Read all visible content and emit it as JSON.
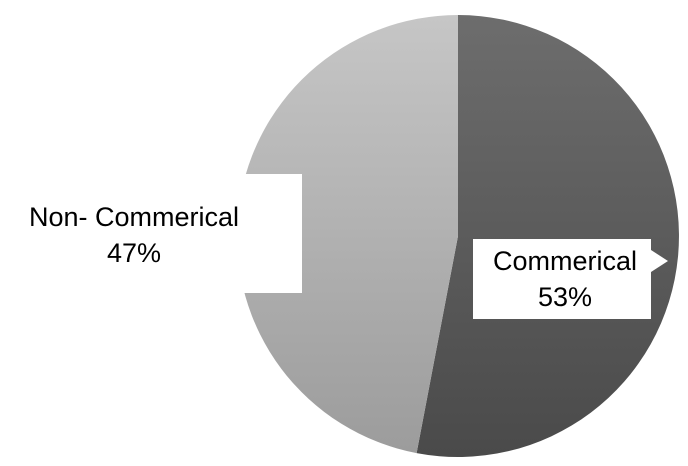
{
  "chart_data": {
    "type": "pie",
    "slices": [
      {
        "label": "Commerical",
        "value": 53,
        "display": "53%",
        "color_top": "#6d6d6d",
        "color_bottom": "#4a4a4a"
      },
      {
        "label": "Non- Commerical",
        "value": 47,
        "display": "47%",
        "color_top": "#c6c6c6",
        "color_bottom": "#9c9c9c"
      }
    ],
    "start": "12 o'clock",
    "direction": "clockwise",
    "label_background": "#ffffff",
    "text_color": "#000000"
  }
}
